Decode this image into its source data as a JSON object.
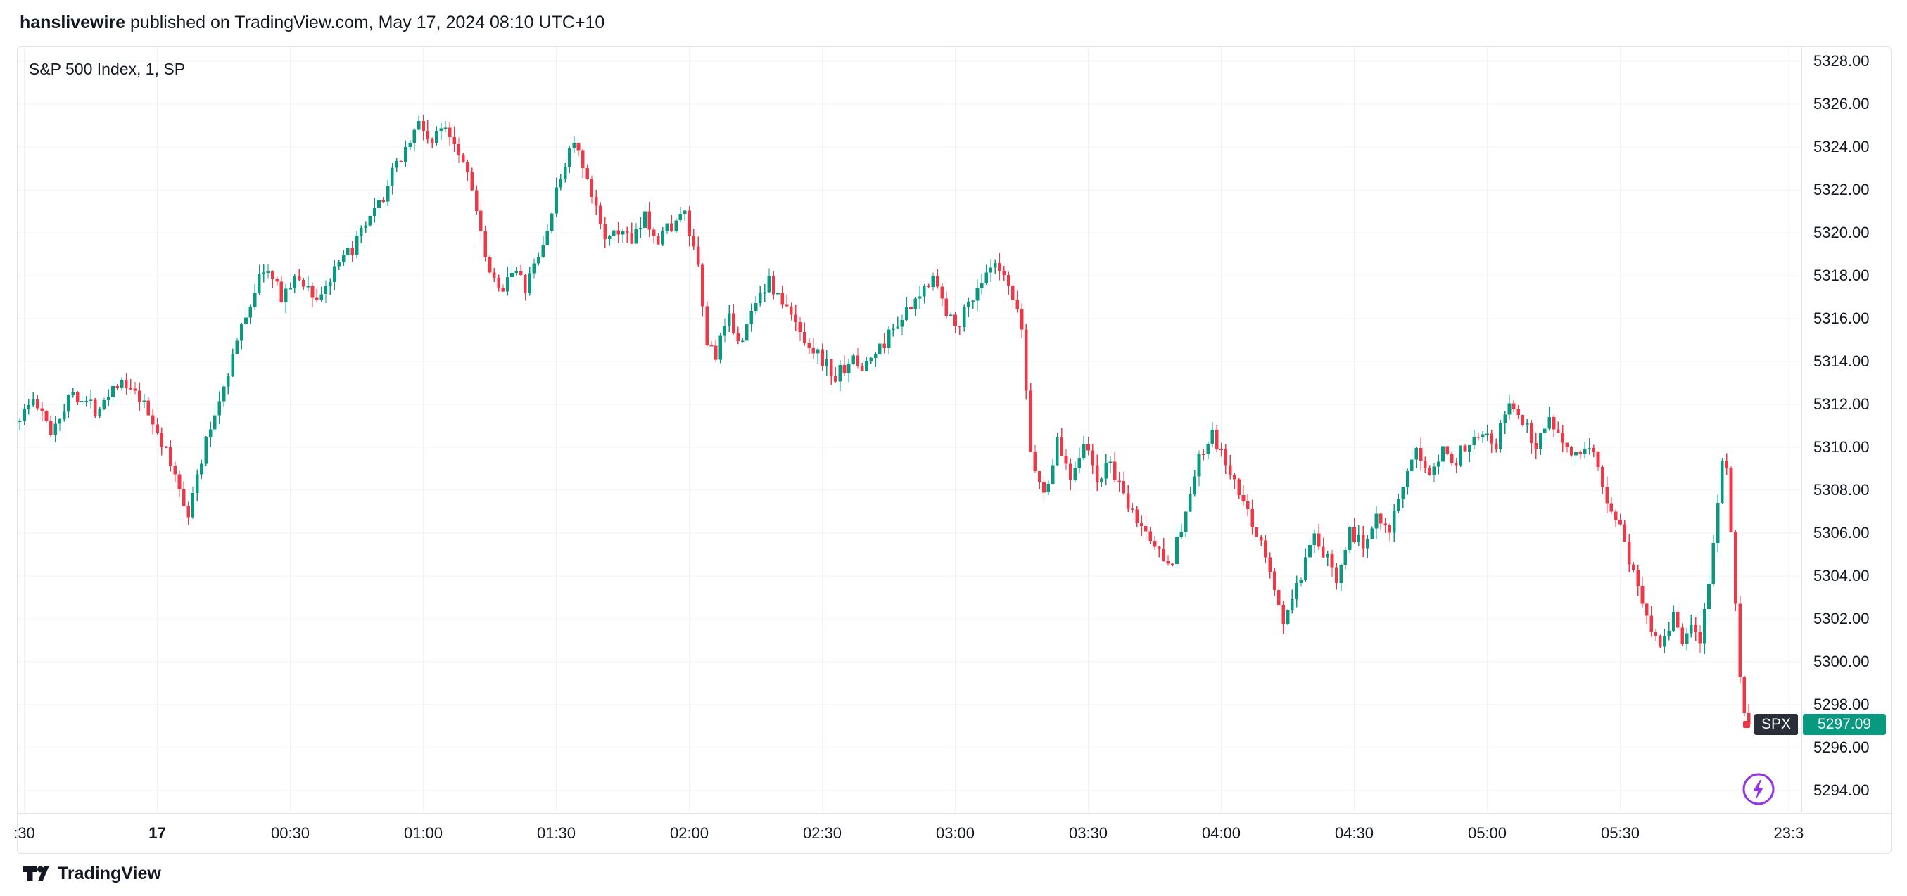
{
  "header": {
    "author": "hanslivewire",
    "published_text": "published on TradingView.com, May 17, 2024 08:10 UTC+10"
  },
  "footer": {
    "brand": "TradingView"
  },
  "overlay": {
    "boost_icon": "lightning",
    "color": "#9334E9"
  },
  "price_label": {
    "symbol": "SPX",
    "value": "5297.09",
    "symbol_bg": "#2A2E39"
  },
  "chart_data": {
    "type": "candlestick",
    "title": "S&P 500 Index, 1, SP",
    "symbol": "S&P 500 Index",
    "ticker": "SPX",
    "interval": "1",
    "exchange": "SP",
    "last_price": 5297.09,
    "colors": {
      "up": "#089981",
      "down": "#F23645",
      "grid": "#F0F3FA"
    },
    "price_axis": {
      "min": 5294,
      "max": 5328,
      "step": 2
    },
    "time_axis": {
      "labels": [
        {
          "text": ":30",
          "t": 1
        },
        {
          "text": "17",
          "t": 31,
          "emphasis": true
        },
        {
          "text": "00:30",
          "t": 61
        },
        {
          "text": "01:00",
          "t": 91
        },
        {
          "text": "01:30",
          "t": 121
        },
        {
          "text": "02:00",
          "t": 151
        },
        {
          "text": "02:30",
          "t": 181
        },
        {
          "text": "03:00",
          "t": 211
        },
        {
          "text": "03:30",
          "t": 241
        },
        {
          "text": "04:00",
          "t": 271
        },
        {
          "text": "04:30",
          "t": 301
        },
        {
          "text": "05:00",
          "t": 331
        },
        {
          "text": "05:30",
          "t": 361
        },
        {
          "text": "23:3",
          "t": 399
        }
      ]
    },
    "n_bars": 391,
    "bar_minutes": 1,
    "price_path": [
      [
        0,
        5311.2
      ],
      [
        4,
        5312.2
      ],
      [
        8,
        5310.8
      ],
      [
        13,
        5312.6
      ],
      [
        18,
        5311.8
      ],
      [
        23,
        5313.1
      ],
      [
        28,
        5312.2
      ],
      [
        32,
        5310.8
      ],
      [
        36,
        5308.6
      ],
      [
        39,
        5307.0
      ],
      [
        43,
        5310.2
      ],
      [
        48,
        5313.6
      ],
      [
        52,
        5316.2
      ],
      [
        56,
        5318.4
      ],
      [
        60,
        5317.1
      ],
      [
        64,
        5317.9
      ],
      [
        68,
        5316.9
      ],
      [
        72,
        5318.1
      ],
      [
        77,
        5319.6
      ],
      [
        82,
        5321.2
      ],
      [
        86,
        5323.2
      ],
      [
        91,
        5325.1
      ],
      [
        94,
        5324.2
      ],
      [
        97,
        5325.1
      ],
      [
        100,
        5323.9
      ],
      [
        103,
        5322.3
      ],
      [
        106,
        5318.6
      ],
      [
        109,
        5317.2
      ],
      [
        112,
        5318.4
      ],
      [
        115,
        5317.4
      ],
      [
        119,
        5319.4
      ],
      [
        122,
        5321.8
      ],
      [
        124,
        5323.3
      ],
      [
        126,
        5324.3
      ],
      [
        129,
        5322.2
      ],
      [
        132,
        5320.5
      ],
      [
        134,
        5319.6
      ],
      [
        137,
        5320.2
      ],
      [
        139,
        5319.4
      ],
      [
        142,
        5320.7
      ],
      [
        145,
        5319.8
      ],
      [
        148,
        5320.4
      ],
      [
        151,
        5320.8
      ],
      [
        154,
        5318.2
      ],
      [
        156,
        5314.8
      ],
      [
        158,
        5314.4
      ],
      [
        161,
        5315.9
      ],
      [
        164,
        5314.9
      ],
      [
        167,
        5317.0
      ],
      [
        170,
        5317.7
      ],
      [
        174,
        5316.4
      ],
      [
        178,
        5315.1
      ],
      [
        182,
        5314.1
      ],
      [
        185,
        5313.2
      ],
      [
        188,
        5314.1
      ],
      [
        191,
        5313.7
      ],
      [
        195,
        5314.6
      ],
      [
        199,
        5315.9
      ],
      [
        203,
        5316.6
      ],
      [
        207,
        5318.2
      ],
      [
        210,
        5316.1
      ],
      [
        213,
        5315.9
      ],
      [
        217,
        5317.5
      ],
      [
        221,
        5318.4
      ],
      [
        224,
        5317.4
      ],
      [
        227,
        5315.5
      ],
      [
        229,
        5309.8
      ],
      [
        232,
        5307.7
      ],
      [
        235,
        5310.2
      ],
      [
        238,
        5308.7
      ],
      [
        241,
        5310.3
      ],
      [
        244,
        5308.4
      ],
      [
        247,
        5309.3
      ],
      [
        250,
        5307.5
      ],
      [
        254,
        5306.3
      ],
      [
        258,
        5305.1
      ],
      [
        261,
        5304.8
      ],
      [
        264,
        5307.0
      ],
      [
        267,
        5309.4
      ],
      [
        270,
        5310.5
      ],
      [
        273,
        5309.2
      ],
      [
        277,
        5307.3
      ],
      [
        281,
        5305.6
      ],
      [
        284,
        5303.3
      ],
      [
        286,
        5301.9
      ],
      [
        289,
        5303.4
      ],
      [
        293,
        5305.7
      ],
      [
        298,
        5304.0
      ],
      [
        301,
        5306.2
      ],
      [
        304,
        5305.3
      ],
      [
        307,
        5307.0
      ],
      [
        310,
        5306.3
      ],
      [
        313,
        5308.0
      ],
      [
        316,
        5309.7
      ],
      [
        319,
        5309.0
      ],
      [
        322,
        5310.0
      ],
      [
        325,
        5309.4
      ],
      [
        328,
        5310.4
      ],
      [
        331,
        5310.9
      ],
      [
        334,
        5310.2
      ],
      [
        337,
        5312.1
      ],
      [
        340,
        5311.2
      ],
      [
        343,
        5310.1
      ],
      [
        346,
        5311.4
      ],
      [
        350,
        5310.1
      ],
      [
        353,
        5309.5
      ],
      [
        356,
        5309.7
      ],
      [
        359,
        5307.6
      ],
      [
        362,
        5306.3
      ],
      [
        365,
        5304.1
      ],
      [
        368,
        5302.1
      ],
      [
        371,
        5300.9
      ],
      [
        374,
        5302.2
      ],
      [
        376,
        5300.9
      ],
      [
        378,
        5301.9
      ],
      [
        380,
        5300.7
      ],
      [
        382,
        5303.6
      ],
      [
        384,
        5307.5
      ],
      [
        385,
        5309.7
      ],
      [
        386,
        5308.9
      ],
      [
        387,
        5306.0
      ],
      [
        388,
        5303.0
      ],
      [
        389,
        5299.5
      ],
      [
        390,
        5297.3
      ]
    ]
  }
}
